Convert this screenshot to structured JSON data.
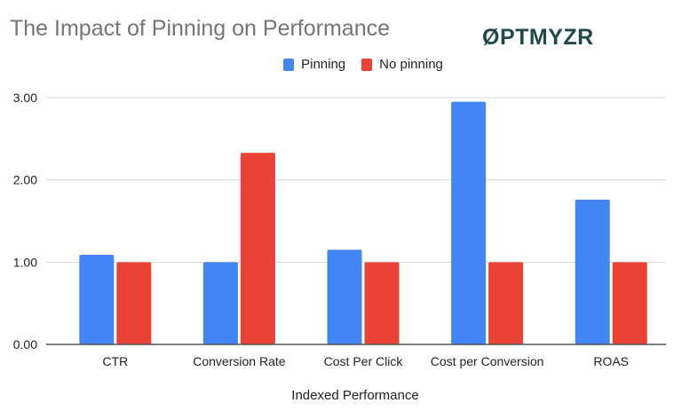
{
  "chart_data": {
    "type": "bar",
    "title": "The Impact of Pinning on Performance",
    "xlabel": "Indexed Performance",
    "ylabel": "",
    "categories": [
      "CTR",
      "Conversion Rate",
      "Cost Per Click",
      "Cost per Conversion",
      "ROAS"
    ],
    "series": [
      {
        "name": "Pinning",
        "color": "#4285f4",
        "values": [
          1.09,
          1.0,
          1.15,
          2.95,
          1.76
        ]
      },
      {
        "name": "No pinning",
        "color": "#ea4335",
        "values": [
          1.0,
          2.33,
          1.0,
          1.0,
          1.0
        ]
      }
    ],
    "ylim": [
      0,
      3
    ],
    "yticks": [
      "0.00",
      "1.00",
      "2.00",
      "3.00"
    ],
    "grid": true,
    "legend": "top"
  },
  "logo": {
    "text": "OPTMYZR"
  }
}
